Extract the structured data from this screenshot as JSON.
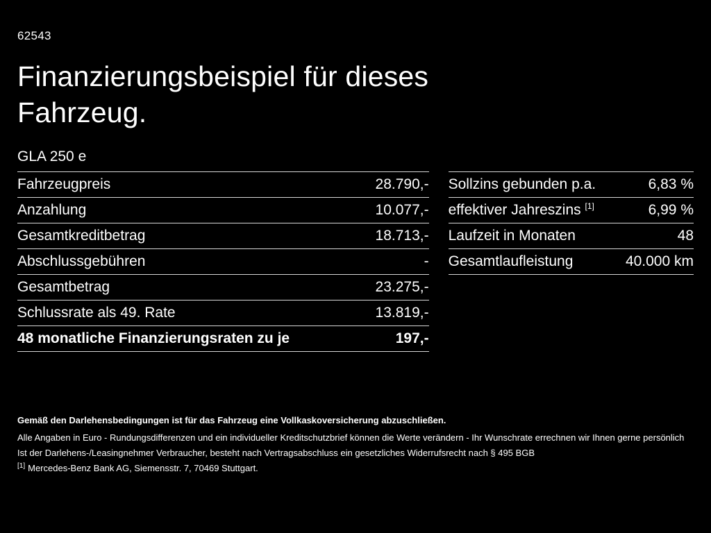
{
  "page": {
    "ref_number": "62543",
    "title_line1": "Finanzierungsbeispiel für dieses",
    "title_line2": "Fahrzeug.",
    "model": "GLA 250 e"
  },
  "left_table": {
    "rows": [
      {
        "label": "Fahrzeugpreis",
        "value": "28.790,-"
      },
      {
        "label": "Anzahlung",
        "value": "10.077,-"
      },
      {
        "label": "Gesamtkreditbetrag",
        "value": "18.713,-"
      },
      {
        "label": "Abschlussgebühren",
        "value": "-"
      },
      {
        "label": "Gesamtbetrag",
        "value": "23.275,-"
      },
      {
        "label": "Schlussrate als 49. Rate",
        "value": "13.819,-"
      },
      {
        "label": "48 monatliche Finanzierungsraten zu je",
        "value": "197,-"
      }
    ]
  },
  "right_table": {
    "rows": [
      {
        "label": "Sollzins gebunden p.a.",
        "sup": "",
        "value": "6,83 %"
      },
      {
        "label": "effektiver Jahreszins",
        "sup": "[1]",
        "value": "6,99 %"
      },
      {
        "label": "Laufzeit in Monaten",
        "sup": "",
        "value": "48"
      },
      {
        "label": "Gesamtlaufleistung",
        "sup": "",
        "value": "40.000 km"
      }
    ]
  },
  "footer": {
    "bold_note": "Gemäß den Darlehensbedingungen ist für das Fahrzeug eine Vollkaskoversicherung abzuschließen.",
    "line1": "Alle Angaben in Euro - Rundungsdifferenzen und ein individueller Kreditschutzbrief können die Werte verändern - Ihr Wunschrate errechnen wir Ihnen gerne persönlich",
    "line2": "Ist der Darlehens-/Leasingnehmer Verbraucher, besteht nach Vertragsabschluss ein gesetzliches Widerrufsrecht nach § 495 BGB",
    "footnote_marker": "[1]",
    "footnote_text": "Mercedes-Benz Bank AG, Siemensstr. 7, 70469 Stuttgart."
  }
}
